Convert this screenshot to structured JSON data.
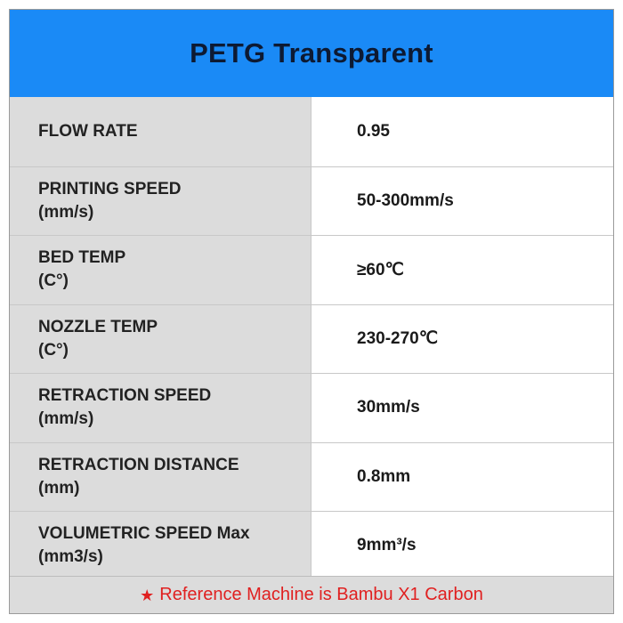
{
  "title": "PETG Transparent",
  "rows": [
    {
      "label_line1": "FLOW RATE",
      "label_line2": "",
      "value": "0.95"
    },
    {
      "label_line1": "PRINTING SPEED",
      "label_line2": "(mm/s)",
      "value": "50-300mm/s"
    },
    {
      "label_line1": "BED TEMP",
      "label_line2": "(C°)",
      "value": "≥60℃"
    },
    {
      "label_line1": "NOZZLE TEMP",
      "label_line2": "(C°)",
      "value": "230-270℃"
    },
    {
      "label_line1": "RETRACTION SPEED",
      "label_line2": "(mm/s)",
      "value": "30mm/s"
    },
    {
      "label_line1": "RETRACTION DISTANCE",
      "label_line2": "(mm)",
      "value": "0.8mm"
    },
    {
      "label_line1": "VOLUMETRIC SPEED Max",
      "label_line2": "(mm3/s)",
      "value": "9mm³/s"
    }
  ],
  "footer": {
    "icon": "star-icon",
    "text": "Reference Machine is Bambu X1 Carbon"
  },
  "colors": {
    "header_bg": "#1a8af6",
    "label_bg": "#dcdcdc",
    "footer_text": "#e02020"
  }
}
